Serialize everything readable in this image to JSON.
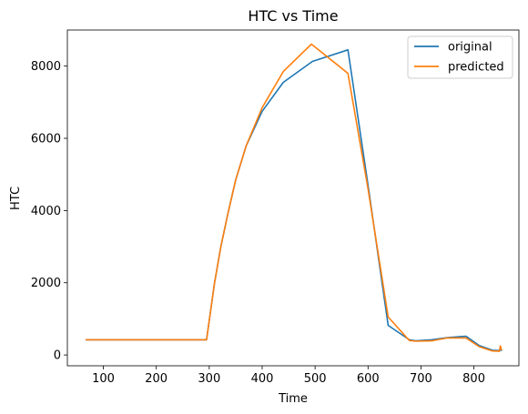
{
  "chart_data": {
    "type": "line",
    "title": "HTC vs Time",
    "xlabel": "Time",
    "ylabel": "HTC",
    "xlim": [
      32,
      885
    ],
    "ylim": [
      -300,
      9000
    ],
    "xticks": [
      100,
      200,
      300,
      400,
      500,
      600,
      700,
      800
    ],
    "yticks": [
      0,
      2000,
      4000,
      6000,
      8000
    ],
    "grid": false,
    "legend_position": "top-right",
    "series": [
      {
        "name": "original",
        "color": "#1f77b4",
        "x": [
          68,
          295,
          310,
          322,
          335,
          350,
          370,
          400,
          440,
          495,
          562,
          600,
          638,
          678,
          690,
          720,
          750,
          785,
          810,
          835,
          848,
          852
        ],
        "y": [
          420,
          420,
          2000,
          3000,
          3900,
          4850,
          5800,
          6750,
          7550,
          8130,
          8450,
          4700,
          820,
          420,
          390,
          420,
          480,
          520,
          260,
          130,
          120,
          130
        ]
      },
      {
        "name": "predicted",
        "color": "#ff7f0e",
        "x": [
          68,
          295,
          310,
          322,
          335,
          350,
          370,
          400,
          440,
          493,
          562,
          600,
          638,
          678,
          690,
          720,
          750,
          785,
          810,
          835,
          848,
          850,
          852
        ],
        "y": [
          420,
          420,
          2000,
          3000,
          3900,
          4850,
          5800,
          6850,
          7850,
          8610,
          7800,
          4600,
          1050,
          400,
          380,
          390,
          470,
          470,
          230,
          110,
          100,
          250,
          150
        ]
      }
    ]
  }
}
